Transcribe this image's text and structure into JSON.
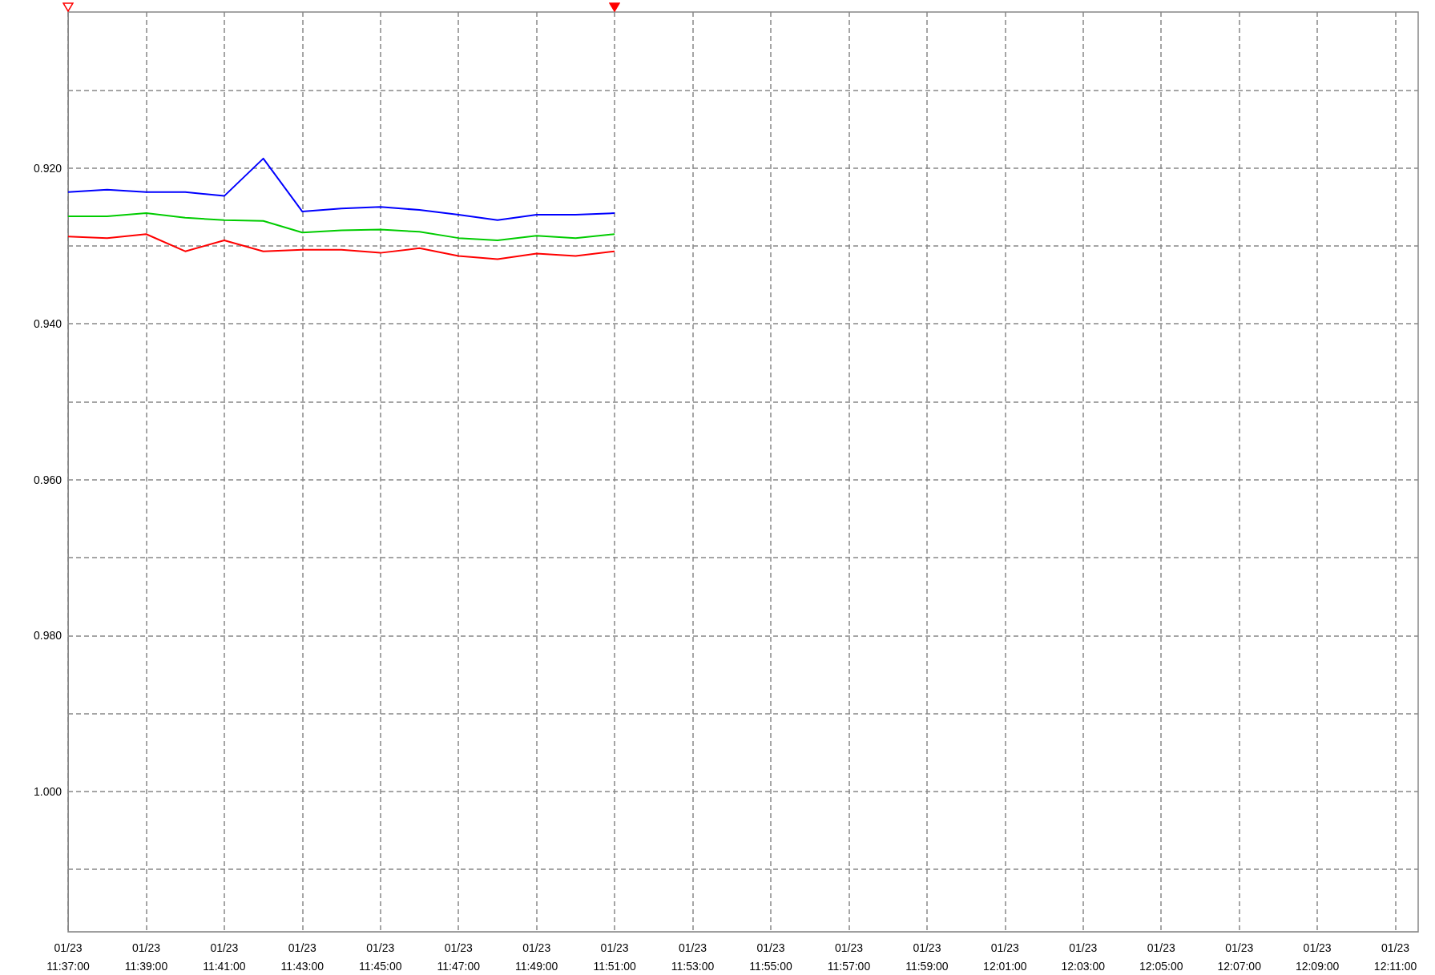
{
  "chart_data": {
    "type": "line",
    "x": [
      "--01-23T11:37",
      "--01-23T11:38",
      "--01-23T11:39",
      "--01-23T11:40",
      "--01-23T11:41",
      "--01-23T11:42",
      "--01-23T11:43",
      "--01-23T11:44",
      "--01-23T11:45",
      "--01-23T11:46",
      "--01-23T11:47",
      "--01-23T11:48",
      "--01-23T11:49",
      "--01-23T11:50",
      "--01-23T11:51"
    ],
    "series": [
      {
        "color": "#0000ff",
        "values": [
          0.9231,
          0.9228,
          0.9231,
          0.9231,
          0.9236,
          0.9188,
          0.9256,
          0.9252,
          0.925,
          0.9254,
          0.926,
          0.9267,
          0.926,
          0.926,
          0.9258
        ]
      },
      {
        "color": "#00cc00",
        "values": [
          0.9262,
          0.9262,
          0.9258,
          0.9264,
          0.9267,
          0.9268,
          0.9283,
          0.928,
          0.9279,
          0.9282,
          0.929,
          0.9293,
          0.9287,
          0.929,
          0.9285
        ]
      },
      {
        "color": "#ff0000",
        "values": [
          0.9288,
          0.929,
          0.9285,
          0.9307,
          0.9293,
          0.9307,
          0.9305,
          0.9305,
          0.9309,
          0.9303,
          0.9313,
          0.9317,
          0.931,
          0.9313,
          0.9307
        ]
      }
    ],
    "xlim": [
      "--01-23T11:37",
      "--01-23T12:11:35"
    ],
    "xticks": [
      {
        "value": "--01-23T11:37",
        "label": "01/23\n11:37:00"
      },
      {
        "value": "--01-23T11:39",
        "label": "01/23\n11:39:00"
      },
      {
        "value": "--01-23T11:41",
        "label": "01/23\n11:41:00"
      },
      {
        "value": "--01-23T11:43",
        "label": "01/23\n11:43:00"
      },
      {
        "value": "--01-23T11:45",
        "label": "01/23\n11:45:00"
      },
      {
        "value": "--01-23T11:47",
        "label": "01/23\n11:47:00"
      },
      {
        "value": "--01-23T11:49",
        "label": "01/23\n11:49:00"
      },
      {
        "value": "--01-23T11:51",
        "label": "01/23\n11:51:00"
      },
      {
        "value": "--01-23T11:53",
        "label": "01/23\n11:53:00"
      },
      {
        "value": "--01-23T11:55",
        "label": "01/23\n11:55:00"
      },
      {
        "value": "--01-23T11:57",
        "label": "01/23\n11:57:00"
      },
      {
        "value": "--01-23T11:59",
        "label": "01/23\n11:59:00"
      },
      {
        "value": "--01-23T12:01",
        "label": "01/23\n12:01:00"
      },
      {
        "value": "--01-23T12:03",
        "label": "01/23\n12:03:00"
      },
      {
        "value": "--01-23T12:05",
        "label": "01/23\n12:05:00"
      },
      {
        "value": "--01-23T12:07",
        "label": "01/23\n12:07:00"
      },
      {
        "value": "--01-23T12:09",
        "label": "01/23\n12:09:00"
      },
      {
        "value": "--01-23T12:11",
        "label": "01/23\n12:11:00"
      }
    ],
    "ylim": [
      1.018,
      0.9
    ],
    "yticks": [
      {
        "value": 0.91,
        "label": null
      },
      {
        "value": 0.92,
        "label": "0.920"
      },
      {
        "value": 0.93,
        "label": null
      },
      {
        "value": 0.94,
        "label": "0.940"
      },
      {
        "value": 0.95,
        "label": null
      },
      {
        "value": 0.96,
        "label": "0.960"
      },
      {
        "value": 0.97,
        "label": null
      },
      {
        "value": 0.98,
        "label": "0.980"
      },
      {
        "value": 0.99,
        "label": null
      },
      {
        "value": 1.0,
        "label": "1.000"
      },
      {
        "value": 1.01,
        "label": null
      }
    ],
    "grid": true,
    "line_style": "solid"
  }
}
